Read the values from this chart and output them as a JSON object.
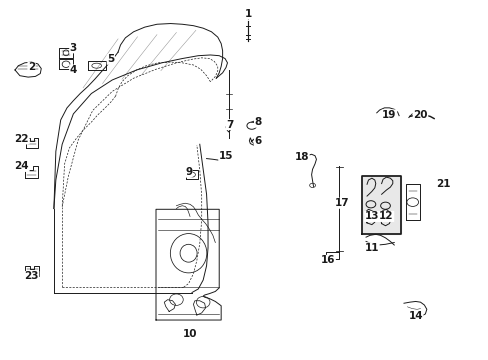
{
  "background_color": "#ffffff",
  "figure_width": 4.89,
  "figure_height": 3.6,
  "dpi": 100,
  "line_color": "#1a1a1a",
  "label_fontsize": 7.5,
  "line_width": 0.7,
  "labels": {
    "1": [
      0.508,
      0.965,
      0.508,
      0.94
    ],
    "2": [
      0.062,
      0.815,
      0.075,
      0.825
    ],
    "3": [
      0.148,
      0.87,
      0.148,
      0.855
    ],
    "4": [
      0.148,
      0.808,
      0.155,
      0.818
    ],
    "5": [
      0.225,
      0.838,
      0.225,
      0.825
    ],
    "6": [
      0.528,
      0.61,
      0.515,
      0.598
    ],
    "7": [
      0.47,
      0.655,
      0.478,
      0.64
    ],
    "8": [
      0.528,
      0.662,
      0.518,
      0.65
    ],
    "9": [
      0.385,
      0.522,
      0.39,
      0.51
    ],
    "10": [
      0.388,
      0.068,
      0.388,
      0.085
    ],
    "11": [
      0.762,
      0.31,
      0.762,
      0.325
    ],
    "12": [
      0.792,
      0.398,
      0.785,
      0.41
    ],
    "13": [
      0.762,
      0.398,
      0.77,
      0.41
    ],
    "14": [
      0.852,
      0.12,
      0.852,
      0.135
    ],
    "15": [
      0.462,
      0.568,
      0.462,
      0.555
    ],
    "16": [
      0.672,
      0.275,
      0.672,
      0.29
    ],
    "17": [
      0.7,
      0.435,
      0.7,
      0.422
    ],
    "18": [
      0.618,
      0.565,
      0.632,
      0.558
    ],
    "19": [
      0.798,
      0.682,
      0.81,
      0.672
    ],
    "20": [
      0.862,
      0.682,
      0.862,
      0.668
    ],
    "21": [
      0.908,
      0.488,
      0.895,
      0.475
    ],
    "22": [
      0.042,
      0.615,
      0.055,
      0.605
    ],
    "23": [
      0.062,
      0.23,
      0.062,
      0.245
    ],
    "24": [
      0.042,
      0.538,
      0.055,
      0.525
    ]
  }
}
